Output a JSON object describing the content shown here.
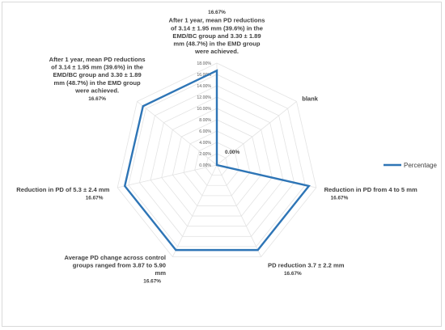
{
  "chart_data": {
    "type": "radar",
    "categories": [
      "After 1 year, mean PD reductions of 3.14 ± 1.95 mm (39.6%) in the EMD/BC group and 3.30 ± 1.89 mm (48.7%) in the EMD group were achieved.",
      "blank",
      "Reduction in PD from 4 to 5 mm",
      "PD reduction 3.7 ± 2.2 mm",
      "Average PD change across control groups ranged from 3.87 to 5.90 mm",
      "Reduction in PD of 5.3 ± 2.4 mm",
      "After 1 year, mean PD reductions of 3.14 ± 1.95 mm (39.6%) in the EMD/BC group and 3.30 ± 1.89 mm (48.7%) in the EMD group were achieved."
    ],
    "category_lines": [
      [
        "After 1 year, mean PD reductions",
        "of 3.14 ± 1.95 mm (39.6%) in the",
        "EMD/BC group and 3.30 ± 1.89",
        "mm (48.7%) in the EMD group",
        "were achieved."
      ],
      [
        "blank"
      ],
      [
        "Reduction in PD from 4 to 5 mm"
      ],
      [
        "PD reduction 3.7 ± 2.2 mm"
      ],
      [
        "Average PD change across control",
        "groups ranged from 3.87 to 5.90",
        "mm"
      ],
      [
        "Reduction in PD of 5.3 ± 2.4 mm"
      ],
      [
        "After 1 year, mean PD reductions",
        "of 3.14 ± 1.95 mm (39.6%) in the",
        "EMD/BC group and 3.30 ± 1.89",
        "mm (48.7%) in the EMD group",
        "were achieved."
      ]
    ],
    "series": [
      {
        "name": "Percentage",
        "values": [
          16.67,
          0.0,
          16.67,
          16.67,
          16.67,
          16.67,
          16.67
        ],
        "color": "#2e75b6"
      }
    ],
    "data_labels": [
      "16.67%",
      "0.00%",
      "16.67%",
      "16.67%",
      "16.67%",
      "16.67%",
      "16.67%"
    ],
    "axis_ticks": [
      "0.00%",
      "2.00%",
      "4.00%",
      "6.00%",
      "8.00%",
      "10.00%",
      "12.00%",
      "14.00%",
      "16.00%",
      "18.00%"
    ],
    "rmax": 18,
    "legend": "right",
    "grid": true
  }
}
